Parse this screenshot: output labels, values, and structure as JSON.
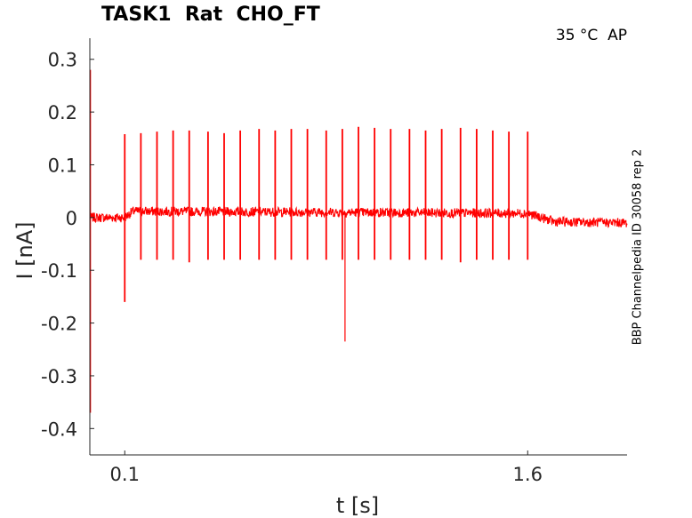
{
  "chart_data": {
    "type": "line",
    "title": "TASK1  Rat  CHO_FT",
    "annotation": "35 °C  AP",
    "side_label": "BBP Channelpedia ID 30058 rep 2",
    "xlabel": "t [s]",
    "ylabel": "I [nA]",
    "xlim": [
      -0.03,
      1.97
    ],
    "ylim": [
      -0.45,
      0.34
    ],
    "x_ticks": [
      0.1,
      1.6
    ],
    "x_tick_labels": [
      "0.1",
      "1.6"
    ],
    "y_ticks": [
      0.3,
      0.2,
      0.1,
      0,
      -0.1,
      -0.2,
      -0.3,
      -0.4
    ],
    "y_tick_labels": [
      "0.3",
      "0.2",
      "0.1",
      "0",
      "-0.1",
      "-0.2",
      "-0.3",
      "-0.4"
    ],
    "grid": false,
    "series": [
      {
        "color": "#ff0000",
        "baseline": [
          {
            "t": -0.03,
            "i": 0.0
          },
          {
            "t": 0.1,
            "i": 0.0
          },
          {
            "t": 0.13,
            "i": 0.012
          },
          {
            "t": 1.6,
            "i": 0.008
          },
          {
            "t": 1.7,
            "i": -0.008
          },
          {
            "t": 1.97,
            "i": -0.01
          }
        ],
        "onset_transient": {
          "t": -0.03,
          "max": 0.28,
          "min": -0.37
        },
        "spikes": [
          {
            "t": 0.1,
            "max": 0.158,
            "min": -0.16
          },
          {
            "t": 0.16,
            "max": 0.16,
            "min": -0.08
          },
          {
            "t": 0.22,
            "max": 0.163,
            "min": -0.08
          },
          {
            "t": 0.28,
            "max": 0.165,
            "min": -0.08
          },
          {
            "t": 0.34,
            "max": 0.165,
            "min": -0.085
          },
          {
            "t": 0.41,
            "max": 0.163,
            "min": -0.08
          },
          {
            "t": 0.47,
            "max": 0.16,
            "min": -0.08
          },
          {
            "t": 0.53,
            "max": 0.165,
            "min": -0.08
          },
          {
            "t": 0.6,
            "max": 0.168,
            "min": -0.08
          },
          {
            "t": 0.66,
            "max": 0.165,
            "min": -0.08
          },
          {
            "t": 0.72,
            "max": 0.168,
            "min": -0.08
          },
          {
            "t": 0.78,
            "max": 0.168,
            "min": -0.08
          },
          {
            "t": 0.85,
            "max": 0.165,
            "min": -0.08
          },
          {
            "t": 0.91,
            "max": 0.168,
            "min": -0.08
          },
          {
            "t": 0.97,
            "max": 0.172,
            "min": -0.08
          },
          {
            "t": 1.03,
            "max": 0.17,
            "min": -0.08
          },
          {
            "t": 1.09,
            "max": 0.168,
            "min": -0.08
          },
          {
            "t": 1.16,
            "max": 0.168,
            "min": -0.08
          },
          {
            "t": 1.22,
            "max": 0.165,
            "min": -0.08
          },
          {
            "t": 1.28,
            "max": 0.168,
            "min": -0.08
          },
          {
            "t": 1.35,
            "max": 0.17,
            "min": -0.085
          },
          {
            "t": 1.41,
            "max": 0.168,
            "min": -0.08
          },
          {
            "t": 1.47,
            "max": 0.165,
            "min": -0.08
          },
          {
            "t": 1.53,
            "max": 0.163,
            "min": -0.08
          },
          {
            "t": 1.6,
            "max": 0.163,
            "min": -0.08
          }
        ],
        "artifacts": [
          {
            "t": 0.92,
            "min": -0.235
          }
        ]
      }
    ]
  }
}
